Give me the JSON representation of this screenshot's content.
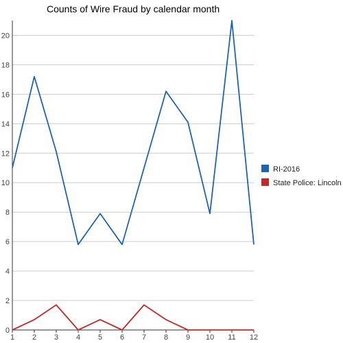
{
  "chart_data": {
    "type": "line",
    "title": "Counts of Wire Fraud by calendar month",
    "xlabel": "",
    "ylabel": "",
    "x": [
      1,
      2,
      3,
      4,
      5,
      6,
      7,
      8,
      9,
      10,
      11,
      12
    ],
    "xlim": [
      1,
      12
    ],
    "ylim": [
      0,
      21
    ],
    "yticks": [
      0,
      2,
      4,
      6,
      8,
      10,
      12,
      14,
      16,
      18,
      20
    ],
    "grid": false,
    "legend_position": "right",
    "series": [
      {
        "name": "RI-2016",
        "color": "#1c64b4",
        "values": [
          11,
          17.2,
          12.1,
          5.8,
          7.9,
          5.8,
          11,
          16.2,
          14.1,
          7.9,
          21,
          5.8
        ]
      },
      {
        "name": "State Police: Lincoln",
        "color": "#c62828",
        "values": [
          0,
          0.7,
          1.7,
          0,
          0.7,
          0,
          1.7,
          0.7,
          0,
          0,
          0,
          0
        ]
      }
    ]
  }
}
